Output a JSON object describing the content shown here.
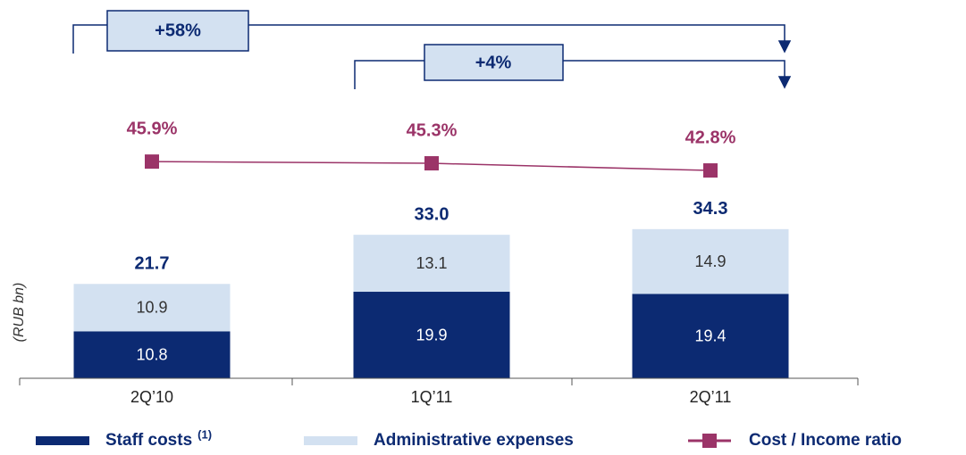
{
  "chart_data": {
    "type": "bar",
    "stacked": true,
    "y_label": "(RUB bn)",
    "categories": [
      "2Q’10",
      "1Q’11",
      "2Q’11"
    ],
    "ylim": [
      0,
      87
    ],
    "y2lim": [
      -30,
      102.5
    ],
    "series": [
      {
        "name": "Staff costs",
        "footnote": "(1)",
        "color": "#0c2a72",
        "values": [
          10.8,
          19.9,
          19.4
        ]
      },
      {
        "name": "Administrative expenses",
        "color": "#d3e1f1",
        "values": [
          10.9,
          13.1,
          14.9
        ]
      },
      {
        "name": "Cost / Income ratio",
        "type": "line",
        "axis": "y2",
        "color": "#9b3468",
        "values": [
          45.9,
          45.3,
          42.8
        ],
        "value_labels": [
          "45.9%",
          "45.3%",
          "42.8%"
        ]
      }
    ],
    "totals": {
      "values": [
        21.7,
        33,
        34.3
      ],
      "value_labels": [
        "21.7",
        "33.0",
        "34.3"
      ]
    },
    "annotations": [
      "+58%",
      "+4%"
    ]
  }
}
